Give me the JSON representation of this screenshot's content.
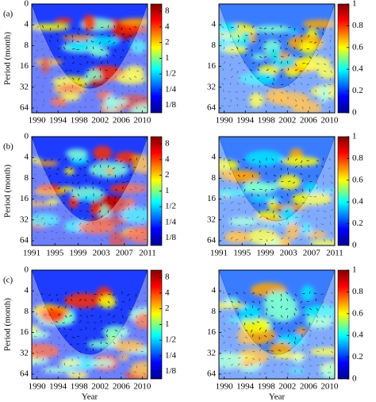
{
  "chart_data": [
    {
      "type": "heatmap",
      "panel_label": "(a)",
      "ylabel": "Period (month)",
      "xlim": [
        1989,
        2011
      ],
      "xticks": [
        1990,
        1994,
        1998,
        2002,
        2006,
        2010
      ],
      "ycategories": [
        "0",
        "4",
        "8",
        "16",
        "32",
        "64"
      ],
      "clim": [
        0.09,
        11
      ],
      "clog": true,
      "cticks": [
        8,
        4,
        2,
        1,
        {
          "value": 0.5,
          "label": "1/2"
        },
        {
          "value": 0.25,
          "label": "1/4"
        },
        {
          "value": 0.125,
          "label": "1/8"
        }
      ]
    },
    {
      "type": "heatmap",
      "xlim": [
        1989,
        2011
      ],
      "xticks": [
        1990,
        1994,
        1998,
        2002,
        2006,
        2010
      ],
      "ycategories": [
        null,
        "4",
        "8",
        "16",
        "32",
        "64"
      ],
      "clim": [
        0,
        1
      ],
      "clog": false,
      "cticks": [
        0,
        0.2,
        0.4,
        0.6,
        0.8,
        1
      ]
    },
    {
      "type": "heatmap",
      "panel_label": "(b)",
      "ylabel": "Period (month)",
      "xlim": [
        1991,
        2011
      ],
      "xticks": [
        1991,
        1995,
        1999,
        2003,
        2007,
        2011
      ],
      "ycategories": [
        "0",
        "4",
        "8",
        "16",
        "32",
        "64"
      ],
      "clim": [
        0.09,
        11
      ],
      "clog": true,
      "cticks": [
        8,
        4,
        2,
        1,
        {
          "value": 0.5,
          "label": "1/2"
        },
        {
          "value": 0.25,
          "label": "1/4"
        },
        {
          "value": 0.125,
          "label": "1/8"
        }
      ]
    },
    {
      "type": "heatmap",
      "xlim": [
        1991,
        2011
      ],
      "xticks": [
        1991,
        1995,
        1999,
        2003,
        2007,
        2011
      ],
      "ycategories": [
        null,
        "4",
        "8",
        "16",
        "32",
        "64"
      ],
      "clim": [
        0,
        1
      ],
      "clog": false,
      "cticks": [
        0,
        0.2,
        0.4,
        0.6,
        0.8,
        1
      ]
    },
    {
      "type": "heatmap",
      "panel_label": "(c)",
      "ylabel": "Period (month)",
      "xlabel": "Year",
      "xlim": [
        1989,
        2011
      ],
      "xticks": [
        1990,
        1994,
        1998,
        2002,
        2006,
        2010
      ],
      "ycategories": [
        "0",
        "4",
        "8",
        "16",
        "32",
        "64"
      ],
      "clim": [
        0.09,
        11
      ],
      "clog": true,
      "cticks": [
        8,
        4,
        2,
        1,
        {
          "value": 0.5,
          "label": "1/2"
        },
        {
          "value": 0.25,
          "label": "1/4"
        },
        {
          "value": 0.125,
          "label": "1/8"
        }
      ]
    },
    {
      "type": "heatmap",
      "xlabel": "Year",
      "xlim": [
        1989,
        2011
      ],
      "xticks": [
        1990,
        1994,
        1998,
        2002,
        2006,
        2010
      ],
      "ycategories": [
        null,
        "4",
        "8",
        "16",
        "32",
        "64"
      ],
      "clim": [
        0,
        1
      ],
      "clog": false,
      "cticks": [
        0,
        0.2,
        0.4,
        0.6,
        0.8,
        1
      ]
    }
  ]
}
